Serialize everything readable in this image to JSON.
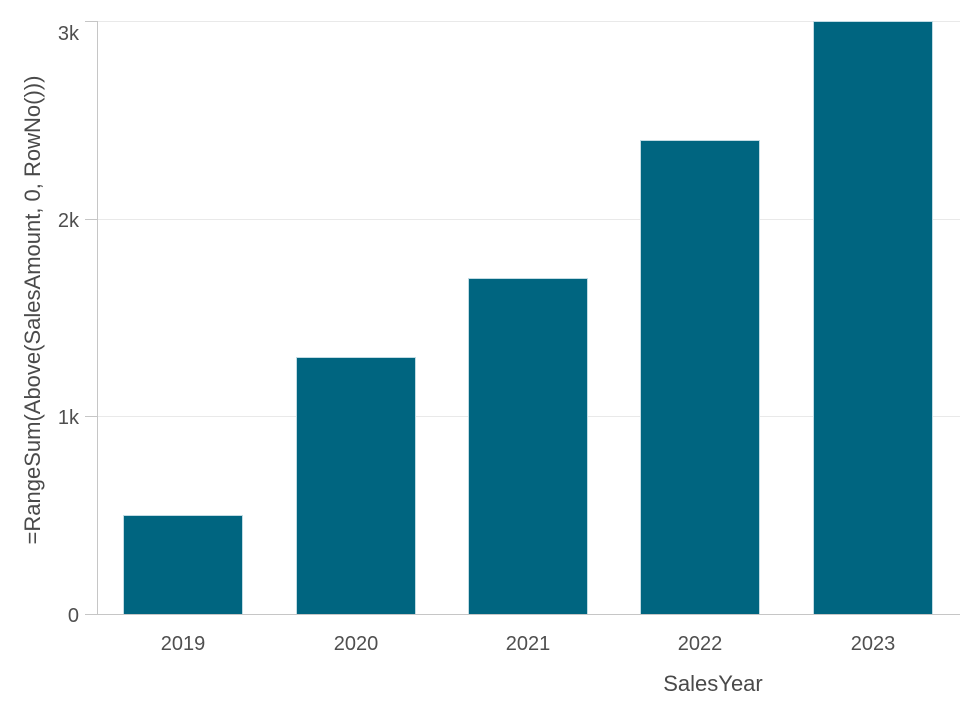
{
  "chart_data": {
    "type": "bar",
    "title": "",
    "categories": [
      "2019",
      "2020",
      "2021",
      "2022",
      "2023"
    ],
    "values": [
      500,
      1300,
      1700,
      2400,
      3000
    ],
    "series_name": "=RangeSum(Above(SalesAmount, 0, RowNo()))",
    "xlabel": "SalesYear",
    "ylabel": "=RangeSum(Above(SalesAmount, 0, RowNo()))",
    "ylim": [
      0,
      3000
    ],
    "yticks": [
      {
        "value": 0,
        "label": "0"
      },
      {
        "value": 1000,
        "label": "1k"
      },
      {
        "value": 2000,
        "label": "2k"
      },
      {
        "value": 3000,
        "label": "3k"
      }
    ],
    "grid": "horizontal",
    "legend": "none",
    "colors": {
      "bar": "#006580",
      "axis": "#c6c6c6",
      "gridline": "#e9e9e9",
      "label_text": "#4f4f4f",
      "background": "#ffffff"
    }
  }
}
